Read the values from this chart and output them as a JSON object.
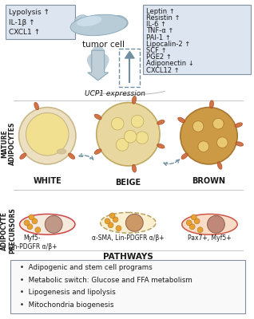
{
  "left_box": {
    "lines": [
      "Lypolysis ↑",
      "IL-1β ↑",
      "CXCL1 ↑"
    ]
  },
  "right_box": {
    "lines": [
      "Leptin ↑",
      "Resistin ↑",
      "IL-6 ↑",
      "TNF-α ↑",
      "PAI-1 ↑",
      "Lipocalin-2 ↑",
      "SCF ↑",
      "PGE2 ↑",
      "Adiponectin ↓",
      "CXCL12 ↑"
    ]
  },
  "tumor_label": "tumor cell",
  "ucp1_label": "UCP1 expression",
  "mature_label": "MATURE\nADIPOCYTES",
  "precursor_label": "ADIPOCYTE\nPRECURSORS",
  "cell_labels": [
    "WHITE",
    "BEIGE",
    "BROWN"
  ],
  "precursor_labels_0": "Myf5-\nLin-PDGFR α/β+",
  "precursor_labels_1": "α-SMA, Lin-PDGFR α/β+",
  "precursor_labels_2": "Pax7+, Myf5+",
  "pathways_title": "PATHWAYS",
  "pathways": [
    "Adipogenic and stem cell programs",
    "Metabolic switch: Glucose and FFA metabolism",
    "Lipogenesis and lipolysis",
    "Mitochondria biogenesis"
  ],
  "bg_color": "#ffffff",
  "text_color": "#1a1a1a",
  "box_bg": "#dde5f0",
  "box_edge": "#8090a0",
  "arrow_fill": "#c0cfd8",
  "arrow_edge": "#8aaabb",
  "dashed_color": "#7090a0",
  "mito_fill": "#cc6633",
  "mito_edge": "#aa4422"
}
